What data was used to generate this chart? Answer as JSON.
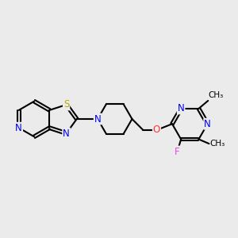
{
  "background_color": "#ebebeb",
  "atom_colors": {
    "N": "#0000ee",
    "S": "#bbaa00",
    "O": "#ff3333",
    "F": "#ee44ee",
    "C": "#000000"
  },
  "bond_color": "#000000",
  "bond_width": 1.5,
  "font_size": 8.5,
  "figsize": [
    3.0,
    3.0
  ],
  "dpi": 100
}
